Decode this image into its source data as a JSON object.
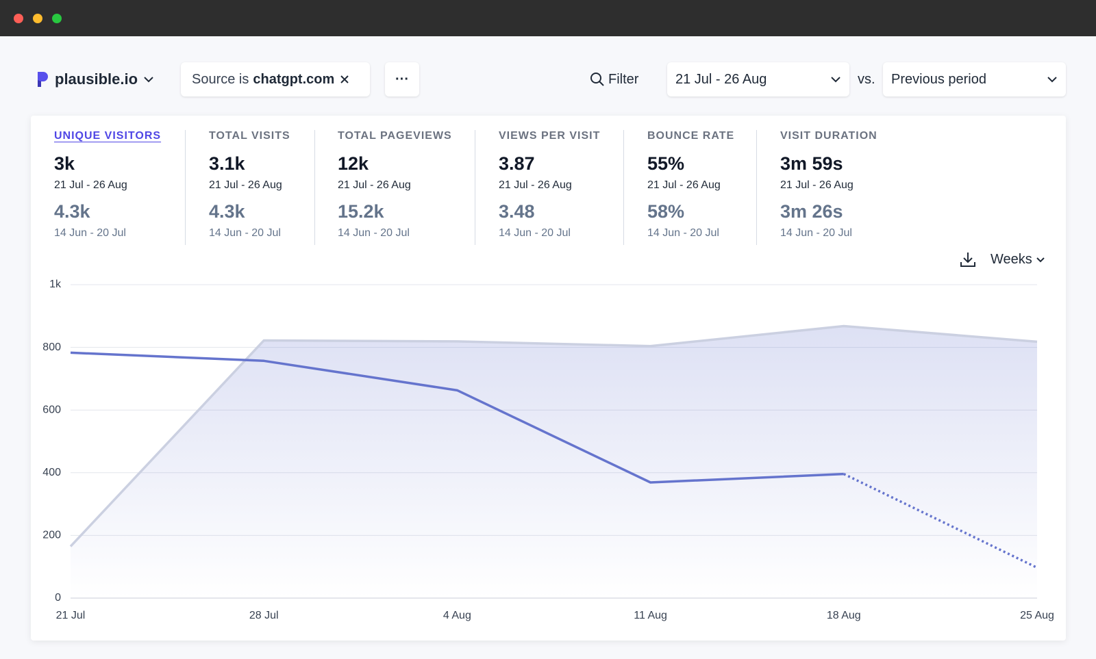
{
  "header": {
    "site": "plausible.io",
    "filter_prefix": "Source is",
    "filter_value": "chatgpt.com",
    "more": "···",
    "filter_button": "Filter",
    "date_range": "21 Jul - 26 Aug",
    "vs": "vs.",
    "comparison": "Previous period"
  },
  "metrics": [
    {
      "label": "UNIQUE VISITORS",
      "value": "3k",
      "period": "21 Jul - 26 Aug",
      "prev_value": "4.3k",
      "prev_period": "14 Jun - 20 Jul"
    },
    {
      "label": "TOTAL VISITS",
      "value": "3.1k",
      "period": "21 Jul - 26 Aug",
      "prev_value": "4.3k",
      "prev_period": "14 Jun - 20 Jul"
    },
    {
      "label": "TOTAL PAGEVIEWS",
      "value": "12k",
      "period": "21 Jul - 26 Aug",
      "prev_value": "15.2k",
      "prev_period": "14 Jun - 20 Jul"
    },
    {
      "label": "VIEWS PER VISIT",
      "value": "3.87",
      "period": "21 Jul - 26 Aug",
      "prev_value": "3.48",
      "prev_period": "14 Jun - 20 Jul"
    },
    {
      "label": "BOUNCE RATE",
      "value": "55%",
      "period": "21 Jul - 26 Aug",
      "prev_value": "58%",
      "prev_period": "14 Jun - 20 Jul"
    },
    {
      "label": "VISIT DURATION",
      "value": "3m 59s",
      "period": "21 Jul - 26 Aug",
      "prev_value": "3m 26s",
      "prev_period": "14 Jun - 20 Jul"
    }
  ],
  "interval": "Weeks",
  "chart_data": {
    "type": "line",
    "categories": [
      "21 Jul",
      "28 Jul",
      "4 Aug",
      "11 Aug",
      "18 Aug",
      "25 Aug"
    ],
    "series": [
      {
        "color": "#cbd0e1",
        "fill": true,
        "values": [
          165,
          822,
          819,
          804,
          868,
          818
        ]
      },
      {
        "color": "#6574cd",
        "fill": false,
        "incomplete_last": true,
        "values": [
          783,
          757,
          663,
          369,
          396,
          97
        ]
      }
    ],
    "ylim": [
      0,
      1000
    ],
    "yticks": [
      0,
      200,
      400,
      600,
      800,
      {
        "value": 1000,
        "label": "1k"
      }
    ],
    "grid": true
  }
}
